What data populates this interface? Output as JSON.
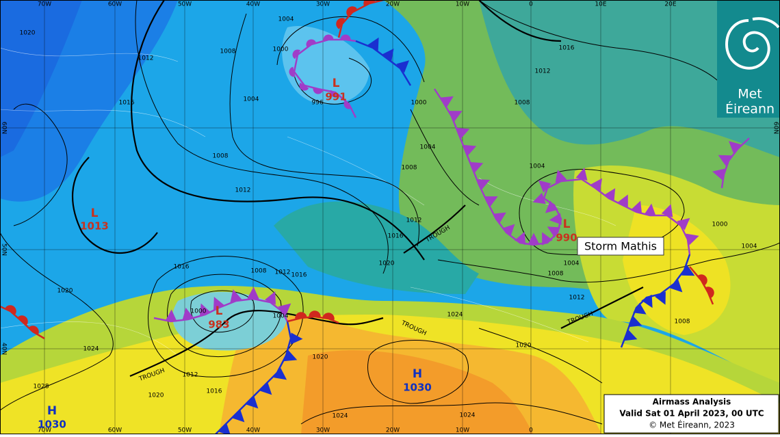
{
  "logo": {
    "line1": "Met",
    "line2": "Éireann"
  },
  "info_box": {
    "title": "Airmass Analysis",
    "valid": "Valid Sat 01 April 2023, 00 UTC",
    "copyright": "© Met Éireann, 2023"
  },
  "storm_label": "Storm Mathis",
  "longitude_labels": [
    "70W",
    "60W",
    "50W",
    "40W",
    "30W",
    "20W",
    "10W",
    "0",
    "10E",
    "20E"
  ],
  "latitude_labels": [
    "60N",
    "50N",
    "40N"
  ],
  "pressure_systems": [
    {
      "type": "L",
      "value": "1013"
    },
    {
      "type": "L",
      "value": "991"
    },
    {
      "type": "L",
      "value": "990"
    },
    {
      "type": "L",
      "value": "983"
    },
    {
      "type": "H",
      "value": "1030"
    },
    {
      "type": "H",
      "value": "1030"
    }
  ],
  "isobar_labels": [
    "1020",
    "1016",
    "1012",
    "1008",
    "1004",
    "1000",
    "996",
    "1000",
    "1004",
    "1008",
    "1012",
    "1016",
    "1020",
    "1016",
    "1012",
    "1008",
    "1004",
    "1000",
    "1004",
    "1004",
    "1008",
    "1012",
    "1008",
    "1024",
    "1020",
    "1012",
    "1016",
    "1020",
    "1024",
    "1024",
    "1008",
    "1012",
    "1016",
    "1000",
    "1004",
    "1020",
    "1024",
    "1028",
    "1020",
    "1016",
    "1008",
    "1012",
    "1004"
  ],
  "trough_labels": [
    "TROUGH",
    "TROUGH",
    "TROUGH",
    "TROUGH"
  ]
}
